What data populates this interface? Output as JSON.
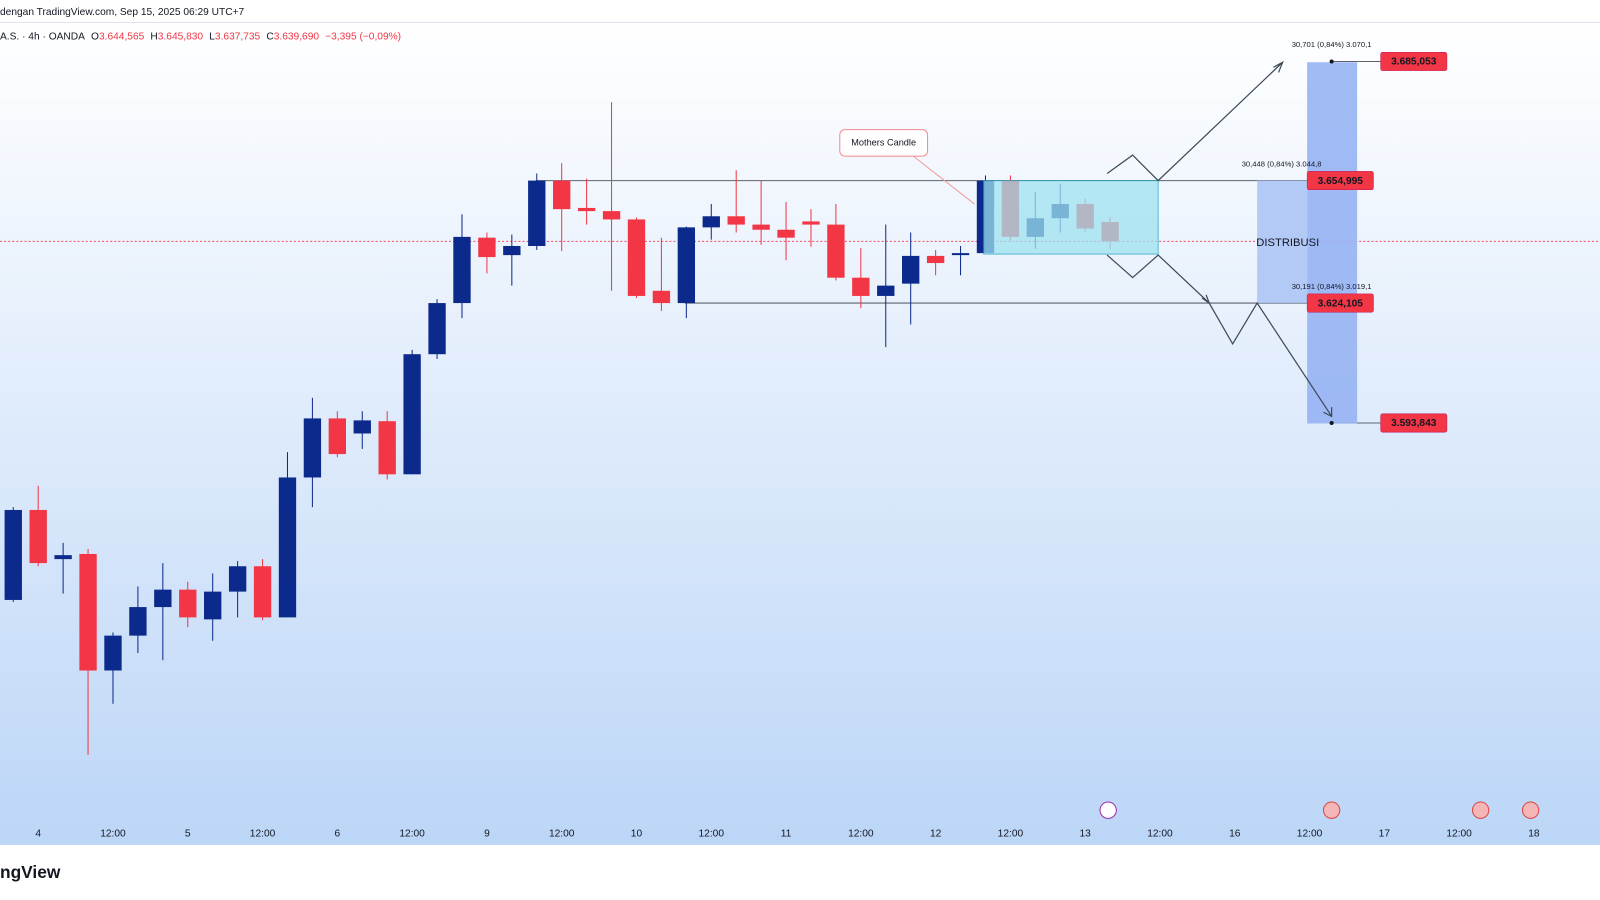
{
  "header": {
    "source": "dengan TradingView.com, Sep 15, 2025 06:29 UTC+7",
    "symbol": "A.S. · 4h · OANDA",
    "open_letter": "O",
    "open": "3.644,565",
    "high_letter": "H",
    "high": "3.645,830",
    "low_letter": "L",
    "low": "3.637,735",
    "close_letter": "C",
    "close": "3.639,690",
    "change": "−3,395 (−0,09%)"
  },
  "footer": {
    "logo": "ngView"
  },
  "chart_data": {
    "type": "candlestick",
    "up_color": "#0c2a8c",
    "down_color": "#f23645",
    "ylim": [
      3487.4,
      3694.9
    ],
    "x_labels": [
      "4",
      "12:00",
      "5",
      "12:00",
      "6",
      "12:00",
      "9",
      "12:00",
      "10",
      "12:00",
      "11",
      "12:00",
      "12",
      "12:00",
      "13",
      "12:00",
      "16",
      "12:00",
      "17",
      "12:00",
      "18"
    ],
    "open": [
      3549.2,
      3571.9,
      3559.5,
      3560.8,
      3531.4,
      3540.2,
      3547.4,
      3551.8,
      3544.3,
      3551.3,
      3557.7,
      3544.8,
      3580.1,
      3595,
      3591.2,
      3594.3,
      3580.9,
      3611.2,
      3624.1,
      3640.6,
      3636.2,
      3638.5,
      3655,
      3648.1,
      3647.3,
      3645.2,
      3627.2,
      3624.1,
      3643.2,
      3646,
      3643.9,
      3642.6,
      3644.7,
      3643.9,
      3630.5,
      3625.9,
      3629,
      3636,
      3636.2,
      3636.7,
      3655,
      3640.8,
      3645.5,
      3649.1,
      3644.565
    ],
    "high": [
      3572.6,
      3578,
      3563.6,
      3562.1,
      3541,
      3552.6,
      3558.5,
      3553.8,
      3555.9,
      3559,
      3559.5,
      3586.5,
      3600.2,
      3596.8,
      3596.8,
      3596.8,
      3612.3,
      3625.1,
      3646.5,
      3641.9,
      3641.4,
      3656.8,
      3659.4,
      3655.5,
      3674.8,
      3645.7,
      3640.6,
      3643.4,
      3649.1,
      3657.6,
      3655,
      3649.6,
      3647.8,
      3649.1,
      3638,
      3643.9,
      3641.9,
      3637.5,
      3638.5,
      3656.3,
      3656.3,
      3652.2,
      3654.2,
      3650.4,
      3645.83
    ],
    "low": [
      3548.7,
      3557.7,
      3550.8,
      3510.1,
      3523,
      3535.8,
      3534,
      3542.3,
      3538.9,
      3544.8,
      3544.1,
      3544.8,
      3572.6,
      3585.2,
      3587.3,
      3579.6,
      3580.9,
      3610,
      3620.3,
      3631.6,
      3628.5,
      3637.5,
      3637.2,
      3643.9,
      3627.2,
      3625.4,
      3622.1,
      3620.3,
      3640.1,
      3641.9,
      3638.8,
      3634.9,
      3638.3,
      3629.8,
      3622.8,
      3613,
      3618.7,
      3631.1,
      3631.1,
      3636.7,
      3639.8,
      3637.8,
      3641.9,
      3641.9,
      3637.735
    ],
    "close": [
      3571.9,
      3558.5,
      3560.5,
      3531.4,
      3540.2,
      3547.4,
      3551.8,
      3544.8,
      3551.3,
      3557.7,
      3544.8,
      3580.1,
      3595,
      3586,
      3594.5,
      3580.9,
      3611.2,
      3624.1,
      3640.8,
      3635.7,
      3638.5,
      3655,
      3647.8,
      3647.3,
      3645.2,
      3625.9,
      3624.1,
      3643.2,
      3646,
      3643.9,
      3642.6,
      3640.6,
      3643.9,
      3630.5,
      3625.9,
      3628.5,
      3636,
      3634.2,
      3636.7,
      3655,
      3640.8,
      3645.5,
      3649.1,
      3642.9,
      3639.69
    ],
    "price_tags": [
      {
        "value": 3685.053,
        "label": "3.685,053"
      },
      {
        "value": 3654.995,
        "label": "3.654,995"
      },
      {
        "value": 3624.105,
        "label": "3.624,105"
      },
      {
        "value": 3593.843,
        "label": "3.593,843"
      }
    ],
    "annotations": {
      "mothers_candle": "Mothers Candle",
      "zone": "DISTRIBUSI",
      "measure_top": "30,701 (0,84%) 3.070,1",
      "measure_mid": "30,448 (0,84%) 3.044,8",
      "measure_bottom": "30,191 (0,84%) 3.019,1"
    }
  }
}
